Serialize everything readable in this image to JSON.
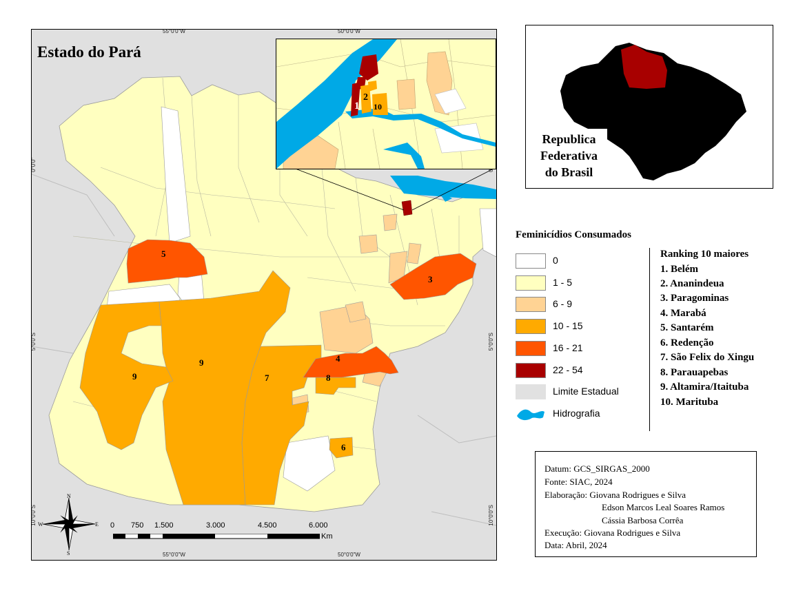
{
  "map": {
    "title": "Estado do Pará",
    "coords": {
      "top_left_lon": "55°0'0\"W",
      "top_right_lon": "50°0'0\"W",
      "bottom_left_lon": "55°0'0\"W",
      "bottom_right_lon": "50°0'0\"W",
      "left_lat_1": "0°0'0\"",
      "left_lat_2": "5°0'0\"S",
      "left_lat_3": "10°0'0\"S",
      "right_lat_1": "0°0'0\"",
      "right_lat_2": "5°0'0\"S",
      "right_lat_3": "10°0'0\"S"
    },
    "region_labels": [
      "5",
      "3",
      "9",
      "9",
      "7",
      "4",
      "8",
      "6"
    ],
    "inset_labels": [
      "1",
      "2",
      "10"
    ],
    "colors": {
      "zero": "#ffffff",
      "c1_5": "#ffffc0",
      "c6_9": "#ffd394",
      "c10_15": "#ffaa00",
      "c16_21": "#ff5500",
      "c22_54": "#a80000",
      "state_limit": "#e1e1e1",
      "water": "#00a9e6"
    }
  },
  "scale_bar": {
    "labels": [
      "0",
      "750",
      "1.500",
      "3.000",
      "4.500",
      "6.000"
    ],
    "unit": "Km"
  },
  "north_arrow": {
    "n": "N",
    "s": "S",
    "e": "E",
    "w": "W"
  },
  "locator": {
    "label_lines": [
      "Republica",
      "Federativa",
      "do Brasil"
    ]
  },
  "legend": {
    "title": "Feminicídios Consumados",
    "items": [
      {
        "label": "0",
        "color": "#ffffff"
      },
      {
        "label": "1 - 5",
        "color": "#ffffc0"
      },
      {
        "label": "6 - 9",
        "color": "#ffd394"
      },
      {
        "label": "10 - 15",
        "color": "#ffaa00"
      },
      {
        "label": "16 - 21",
        "color": "#ff5500"
      },
      {
        "label": "22 - 54",
        "color": "#a80000"
      },
      {
        "label": "Limite Estadual",
        "color": "#e1e1e1"
      },
      {
        "label": "Hidrografia",
        "color": "#00a9e6"
      }
    ]
  },
  "ranking": {
    "title": "Ranking 10 maiores",
    "items": [
      "1. Belém",
      "2. Ananindeua",
      "3. Paragominas",
      "4. Marabá",
      "5. Santarém",
      "6. Redenção",
      "7. São Felix do Xingu",
      "8. Parauapebas",
      "9. Altamira/Itaituba",
      "10. Marituba"
    ]
  },
  "credits": {
    "datum": "Datum: GCS_SIRGAS_2000",
    "fonte": "Fonte: SIAC, 2024",
    "elaboracao_1": "Elaboração: Giovana Rodrigues e Silva",
    "elaboracao_2": "Edson Marcos Leal Soares Ramos",
    "elaboracao_3": "Cássia Barbosa Corrêa",
    "execucao": "Execução: Giovana Rodrigues e Silva",
    "data": "Data: Abril, 2024"
  }
}
